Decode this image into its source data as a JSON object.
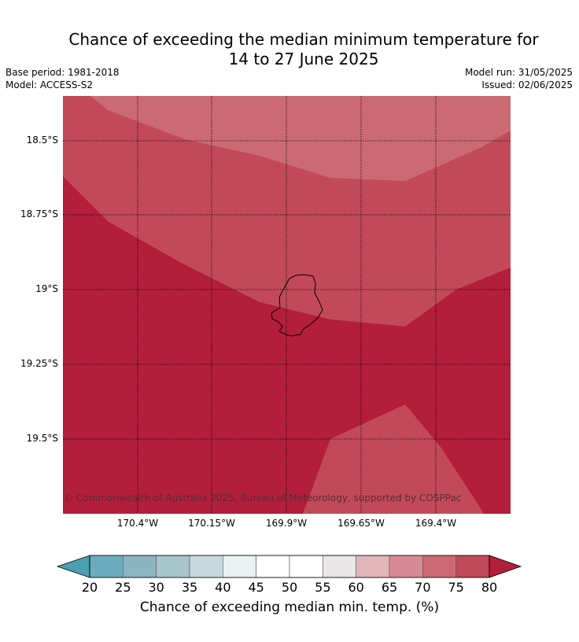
{
  "title_line1": "Chance of exceeding the median minimum temperature for",
  "title_line2": "14 to 27 June 2025",
  "meta": {
    "base_period": "Base period: 1981-2018",
    "model": "Model: ACCESS-S2",
    "model_run": "Model run: 31/05/2025",
    "issued": "Issued: 02/06/2025"
  },
  "copyright": "© Commonwealth of Australia 2025, Bureau of Meteorology, supported by COSPPac",
  "map": {
    "lat_labels": [
      "18.5°S",
      "18.75°S",
      "19°S",
      "19.25°S",
      "19.5°S"
    ],
    "lon_labels": [
      "170.4°W",
      "170.15°W",
      "169.9°W",
      "169.65°W",
      "169.4°W"
    ],
    "feature": "Niue island outline",
    "region_colors": {
      "70_75": "#cc6a74",
      "75_80": "#c24a58",
      "above_80": "#b31e3b"
    }
  },
  "colorbar": {
    "ticks": [
      "20",
      "25",
      "30",
      "35",
      "40",
      "45",
      "50",
      "55",
      "60",
      "65",
      "70",
      "75",
      "80"
    ],
    "label": "Chance of exceeding median min. temp. (%)",
    "below_color": "#4a9fb1",
    "above_color": "#b31e3b",
    "colors": [
      "#6aacbd",
      "#8bb5c2",
      "#a8c6cb",
      "#c8d9dd",
      "#eaf1f3",
      "#ffffff",
      "#ffffff",
      "#e8e6e7",
      "#e0b6ba",
      "#d88a94",
      "#cc6a74",
      "#c24a58"
    ]
  }
}
